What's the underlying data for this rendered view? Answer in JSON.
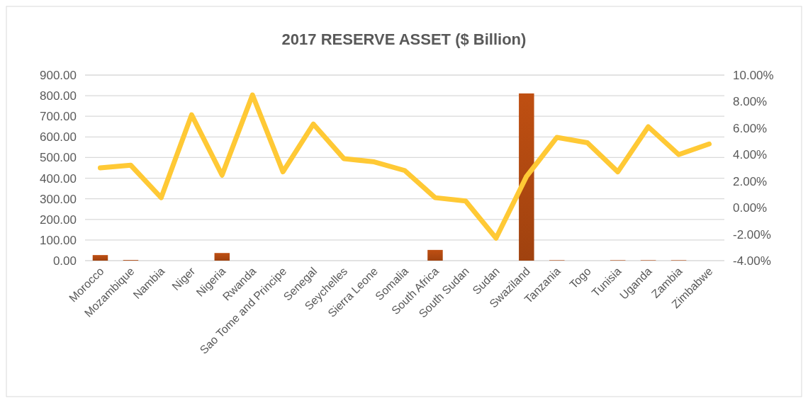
{
  "chart_data": {
    "type": "bar",
    "title": "2017 RESERVE ASSET ($ Billion)",
    "categories": [
      "Morocco",
      "Mozambique",
      "Nambia",
      "Niger",
      "Nigeria",
      "Rwanda",
      "Sao Tome and Principe",
      "Senegal",
      "Seychelles",
      "Sierra Leone",
      "Somalia",
      "South Africa",
      "South Sudan",
      "Sudan",
      "Swaziland",
      "Tanzania",
      "Togo",
      "Tunisia",
      "Uganda",
      "Zambia",
      "Zimbabwe"
    ],
    "series": [
      {
        "color": "#a0420f",
        "values": [
          27,
          3,
          null,
          null,
          37,
          null,
          null,
          null,
          null,
          null,
          null,
          52,
          null,
          null,
          811,
          2,
          null,
          2,
          2,
          2,
          null
        ]
      },
      {
        "type": "line",
        "axis": "y2",
        "color": "#ffc935",
        "values": [
          3.0,
          3.2,
          0.75,
          7.0,
          2.45,
          8.5,
          2.7,
          6.3,
          3.7,
          3.45,
          2.8,
          0.75,
          0.5,
          -2.3,
          2.35,
          5.3,
          4.9,
          2.7,
          6.1,
          4.0,
          4.8
        ]
      }
    ],
    "ylim": [
      0,
      900
    ],
    "yticks": [
      {
        "value": 0,
        "label": "0.00"
      },
      {
        "value": 100,
        "label": "100.00"
      },
      {
        "value": 200,
        "label": "200.00"
      },
      {
        "value": 300,
        "label": "300.00"
      },
      {
        "value": 400,
        "label": "400.00"
      },
      {
        "value": 500,
        "label": "500.00"
      },
      {
        "value": 600,
        "label": "600.00"
      },
      {
        "value": 700,
        "label": "700.00"
      },
      {
        "value": 800,
        "label": "800.00"
      },
      {
        "value": 900,
        "label": "900.00"
      }
    ],
    "y2lim": [
      -4,
      10
    ],
    "y2ticks": [
      {
        "value": -4,
        "label": "-4.00%"
      },
      {
        "value": -2,
        "label": "-2.00%"
      },
      {
        "value": 0,
        "label": "0.00%"
      },
      {
        "value": 2,
        "label": "2.00%"
      },
      {
        "value": 4,
        "label": "4.00%"
      },
      {
        "value": 6,
        "label": "6.00%"
      },
      {
        "value": 8,
        "label": "8.00%"
      },
      {
        "value": 10,
        "label": "10.00%"
      }
    ],
    "grid": "y",
    "marker": "none",
    "line_style": "solid"
  }
}
